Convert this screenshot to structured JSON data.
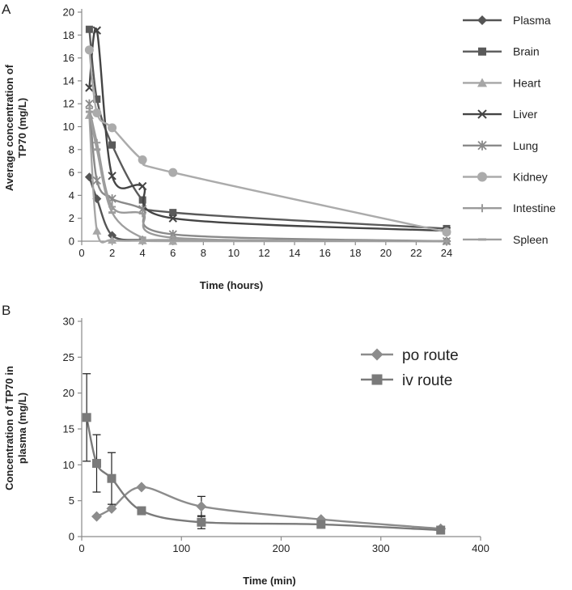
{
  "chart_data": [
    {
      "panel": "A",
      "type": "line",
      "xlabel": "Time (hours)",
      "ylabel_lines": [
        "Average concentration of",
        "TP70 (mg/L)"
      ],
      "xlim": [
        0,
        24
      ],
      "ylim": [
        0,
        20
      ],
      "xticks": [
        0,
        2,
        4,
        6,
        8,
        10,
        12,
        14,
        16,
        18,
        20,
        22,
        24
      ],
      "yticks": [
        0,
        2,
        4,
        6,
        8,
        10,
        12,
        14,
        16,
        18,
        20
      ],
      "legend_position": "right",
      "x": [
        0.5,
        1,
        2,
        4,
        6,
        24
      ],
      "series": [
        {
          "name": "Plasma",
          "marker": "diamond",
          "color": "#555555",
          "values": [
            5.6,
            3.7,
            0.5,
            0.1,
            0.05,
            0.0
          ]
        },
        {
          "name": "Brain",
          "marker": "square",
          "color": "#5a5a5a",
          "values": [
            18.5,
            12.4,
            8.4,
            3.6,
            2.5,
            1.1
          ]
        },
        {
          "name": "Heart",
          "marker": "triangle",
          "color": "#a6a6a6",
          "values": [
            11.0,
            0.9,
            0.1,
            0.05,
            0.0,
            0.0
          ]
        },
        {
          "name": "Liver",
          "marker": "x",
          "color": "#444444",
          "values": [
            13.4,
            18.4,
            5.7,
            4.8,
            2.0,
            0.9
          ]
        },
        {
          "name": "Lung",
          "marker": "star",
          "color": "#8a8a8a",
          "values": [
            12.0,
            5.3,
            3.7,
            2.8,
            0.6,
            0.0
          ]
        },
        {
          "name": "Kidney",
          "marker": "circle",
          "color": "#ababab",
          "values": [
            16.7,
            11.2,
            9.9,
            7.1,
            6.0,
            0.8
          ]
        },
        {
          "name": "Intestine",
          "marker": "plus",
          "color": "#9a9a9a",
          "values": [
            11.6,
            8.6,
            3.0,
            2.4,
            0.3,
            0.0
          ]
        },
        {
          "name": "Spleen",
          "marker": "dash",
          "color": "#9e9e9e",
          "values": [
            11.3,
            8.0,
            2.5,
            0.3,
            0.1,
            0.0
          ]
        }
      ]
    },
    {
      "panel": "B",
      "type": "line",
      "xlabel": "Time (min)",
      "ylabel_lines": [
        "Concentration of  TP70 in",
        "plasma (mg/L)"
      ],
      "xlim": [
        0,
        400
      ],
      "ylim": [
        0,
        30
      ],
      "xticks": [
        0,
        100,
        200,
        300,
        400
      ],
      "yticks": [
        0,
        5,
        10,
        15,
        20,
        25,
        30
      ],
      "legend_position": "top-right",
      "series": [
        {
          "name": "po route",
          "marker": "diamond",
          "color": "#8c8c8c",
          "x": [
            15,
            30,
            60,
            120,
            240,
            360
          ],
          "values": [
            2.8,
            3.9,
            6.9,
            4.2,
            2.4,
            1.1
          ],
          "errors": [
            null,
            null,
            null,
            1.4,
            null,
            null
          ]
        },
        {
          "name": "iv route",
          "marker": "square",
          "color": "#7a7a7a",
          "x": [
            5,
            15,
            30,
            60,
            120,
            240,
            360
          ],
          "values": [
            16.6,
            10.2,
            8.1,
            3.6,
            2.0,
            1.7,
            0.9
          ],
          "errors": [
            6.1,
            4.0,
            3.6,
            null,
            0.9,
            null,
            null
          ]
        }
      ]
    }
  ]
}
